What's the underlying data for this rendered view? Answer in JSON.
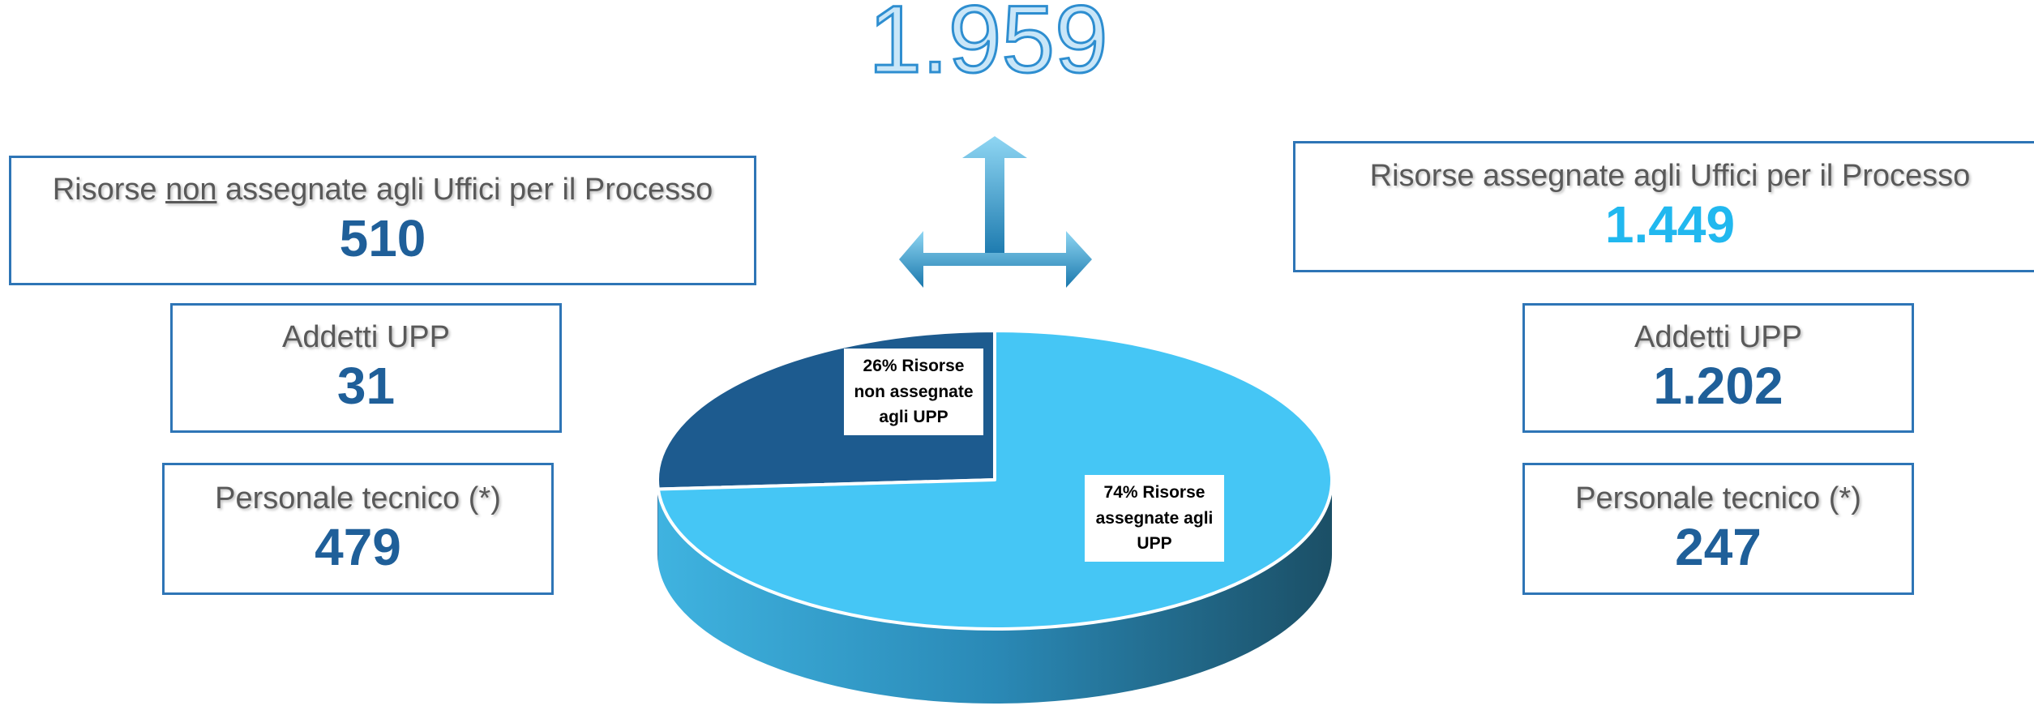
{
  "title": "1.959",
  "left": {
    "heading": [
      "Risorse ",
      "non",
      " assegnate agli Uffici per il Processo"
    ],
    "value": "510",
    "boxes": [
      {
        "label": "Addetti UPP",
        "value": "31"
      },
      {
        "label": "Personale tecnico (*)",
        "value": "479"
      }
    ]
  },
  "right": {
    "heading": "Risorse assegnate agli Uffici per il Processo",
    "value": "1.449",
    "boxes": [
      {
        "label": "Addetti UPP",
        "value": "1.202"
      },
      {
        "label": "Personale tecnico (*)",
        "value": "247"
      }
    ]
  },
  "chart_data": {
    "type": "pie",
    "values": [
      26,
      74
    ],
    "value_labels": [
      "26% Risorse non assegnate agli UPP",
      "74% Risorse assegnate agli UPP"
    ],
    "colors": [
      "#1d5b8f",
      "#45c6f5"
    ]
  }
}
